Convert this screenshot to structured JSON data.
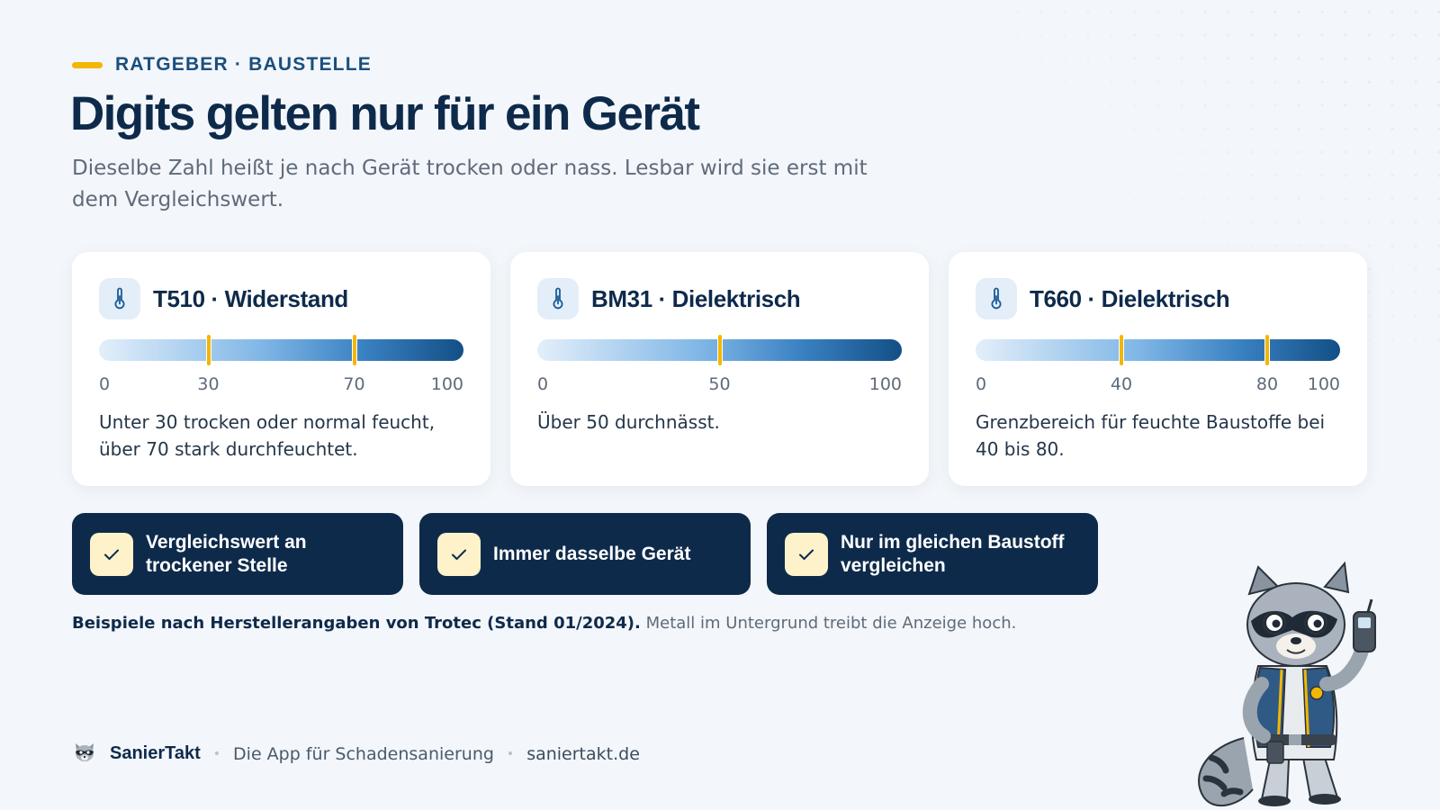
{
  "eyebrow": "RATGEBER · BAUSTELLE",
  "title": "Digits gelten nur für ein Gerät",
  "subtitle": "Dieselbe Zahl heißt je nach Gerät trocken oder nass. Lesbar wird sie erst mit dem Vergleichswert.",
  "cards": [
    {
      "icon": "thermometer-icon",
      "title": "T510 · Widerstand",
      "markers": [
        30,
        70
      ],
      "ticks": [
        0,
        30,
        70,
        100
      ],
      "text": "Unter 30 trocken oder normal feucht, über 70 stark durchfeuchtet."
    },
    {
      "icon": "thermometer-icon",
      "title": "BM31 · Dielektrisch",
      "markers": [
        50
      ],
      "ticks": [
        0,
        50,
        100
      ],
      "text": "Über 50 durchnässt."
    },
    {
      "icon": "thermometer-icon",
      "title": "T660 · Dielektrisch",
      "markers": [
        40,
        80
      ],
      "ticks": [
        0,
        40,
        80,
        100
      ],
      "text": "Grenzbereich für feuchte Baustoffe bei 40 bis 80."
    }
  ],
  "pills": [
    {
      "icon": "check-icon",
      "label": "Vergleichswert an trockener Stelle"
    },
    {
      "icon": "check-icon",
      "label": "Immer dasselbe Gerät"
    },
    {
      "icon": "check-icon",
      "label": "Nur im gleichen Baustoff vergleichen"
    }
  ],
  "note": {
    "strong": "Beispiele nach Herstellerangaben von Trotec (Stand 01/2024).",
    "rest": "Metall im Untergrund treibt die Anzeige hoch."
  },
  "footer": {
    "brand": "SanierTakt",
    "tagline": "Die App für Schadensanierung",
    "separator": "•",
    "url": "saniertakt.de"
  },
  "colors": {
    "accent": "#f2b705",
    "navy": "#0e2a4b",
    "blue": "#1a4f7d"
  }
}
